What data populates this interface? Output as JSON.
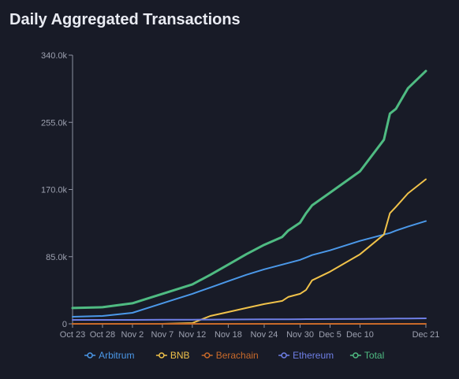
{
  "chart_data": {
    "type": "line",
    "title": "Daily Aggregated Transactions",
    "xlabel": "",
    "ylabel": "",
    "x_ticks": [
      "Oct 23",
      "Oct 28",
      "Nov 2",
      "Nov 7",
      "Nov 12",
      "Nov 18",
      "Nov 24",
      "Nov 30",
      "Dec 5",
      "Dec 10",
      "Dec 21"
    ],
    "y_ticks": [
      "0",
      "85.0k",
      "170.0k",
      "255.0k",
      "340.0k"
    ],
    "ylim": [
      0,
      340000
    ],
    "x": [
      "Oct 23",
      "Oct 28",
      "Nov 2",
      "Nov 7",
      "Nov 12",
      "Nov 15",
      "Nov 18",
      "Nov 21",
      "Nov 24",
      "Nov 27",
      "Nov 28",
      "Nov 30",
      "Dec 1",
      "Dec 2",
      "Dec 5",
      "Dec 10",
      "Dec 14",
      "Dec 15",
      "Dec 16",
      "Dec 18",
      "Dec 21"
    ],
    "series": [
      {
        "name": "Arbitrum",
        "color": "#4b98e8",
        "values": [
          9000,
          10000,
          14000,
          26000,
          38000,
          46000,
          54000,
          62000,
          69000,
          75000,
          77000,
          81000,
          84000,
          87000,
          93000,
          105000,
          113000,
          115000,
          118000,
          123000,
          130000
        ]
      },
      {
        "name": "BNB",
        "color": "#f0c24a",
        "values": [
          0,
          0,
          0,
          0,
          1000,
          10000,
          15000,
          20000,
          25000,
          29000,
          34000,
          38000,
          43000,
          55000,
          66000,
          88000,
          113000,
          140000,
          148000,
          165000,
          183000
        ]
      },
      {
        "name": "Berachain",
        "color": "#c86a2a",
        "values": [
          0,
          0,
          0,
          0,
          0,
          0,
          0,
          0,
          0,
          0,
          0,
          0,
          0,
          0,
          0,
          0,
          0,
          0,
          0,
          0,
          0
        ]
      },
      {
        "name": "Ethereum",
        "color": "#6f7fe6",
        "values": [
          5000,
          5000,
          5000,
          5200,
          5300,
          5400,
          5500,
          5600,
          5700,
          5800,
          5800,
          5900,
          6000,
          6000,
          6100,
          6300,
          6500,
          6600,
          6700,
          6800,
          7000
        ]
      },
      {
        "name": "Total",
        "color": "#4fbb82",
        "values": [
          20000,
          21000,
          26000,
          38000,
          50000,
          62000,
          75000,
          88000,
          100000,
          110000,
          118000,
          128000,
          140000,
          150000,
          166000,
          193000,
          233000,
          266000,
          272000,
          298000,
          320000
        ]
      }
    ],
    "legend_position": "bottom",
    "grid": false
  }
}
